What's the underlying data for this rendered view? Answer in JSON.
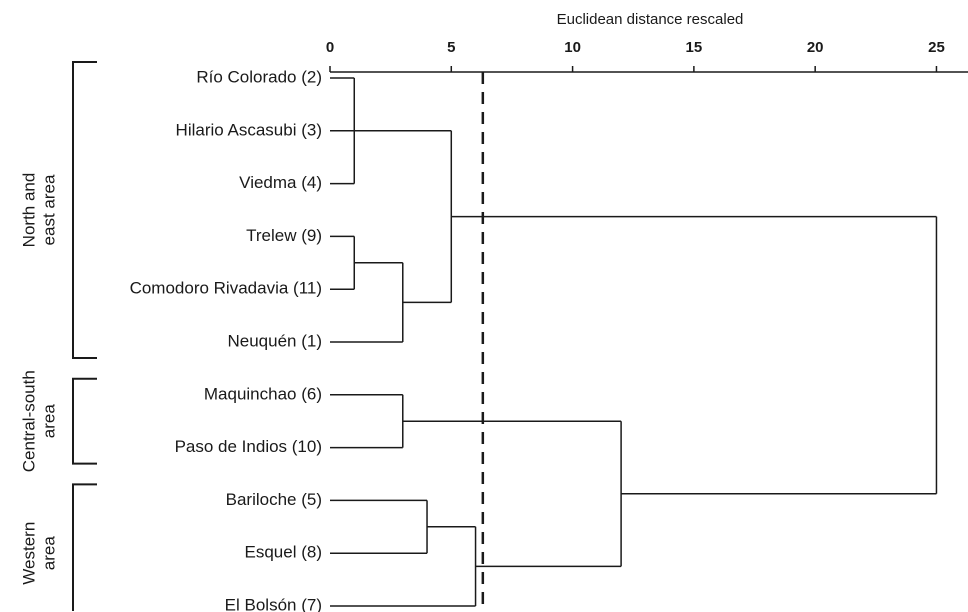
{
  "chart_data": {
    "type": "dendrogram",
    "x_label": "Euclidean distance rescaled",
    "xlim": [
      0,
      26.3
    ],
    "xticks": [
      0,
      5,
      10,
      15,
      20,
      25
    ],
    "leaves": [
      "Río  Colorado (2)",
      "Hilario Ascasubi (3)",
      "Viedma (4)",
      "Trelew (9)",
      "Comodoro Rivadavia (11)",
      "Neuquén (1)",
      "Maquinchao (6)",
      "Paso de Indios (10)",
      "Bariloche (5)",
      "Esquel (8)",
      "El Bolsón (7)"
    ],
    "merges": [
      {
        "children": [
          0,
          1,
          2
        ],
        "distance": 1
      },
      {
        "children": [
          3,
          4
        ],
        "distance": 1
      },
      {
        "children": [
          12,
          5
        ],
        "distance": 3
      },
      {
        "children": [
          11,
          13
        ],
        "distance": 5
      },
      {
        "children": [
          6,
          7
        ],
        "distance": 3
      },
      {
        "children": [
          8,
          9
        ],
        "distance": 4
      },
      {
        "children": [
          16,
          10
        ],
        "distance": 6
      },
      {
        "children": [
          15,
          17
        ],
        "distance": 12
      },
      {
        "children": [
          14,
          18
        ],
        "distance": 25
      }
    ],
    "cutoff": 6.3,
    "groups": [
      {
        "lines": [
          "North and",
          "east area"
        ],
        "from": 0,
        "to": 5
      },
      {
        "lines": [
          "Central-south",
          "area"
        ],
        "from": 6,
        "to": 7
      },
      {
        "lines": [
          "Western",
          "area"
        ],
        "from": 8,
        "to": 10
      }
    ],
    "color": "#1a1a1a"
  }
}
